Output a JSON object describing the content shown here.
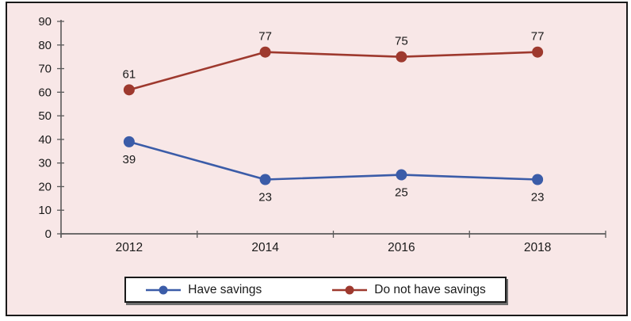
{
  "chart_data": {
    "type": "line",
    "title": "",
    "xlabel": "",
    "ylabel": "",
    "categories": [
      "2012",
      "2014",
      "2016",
      "2018"
    ],
    "series": [
      {
        "name": "Have savings",
        "values": [
          39,
          23,
          25,
          23
        ],
        "color": "#3b5ca8",
        "label_position": "below"
      },
      {
        "name": "Do not have savings",
        "values": [
          61,
          77,
          75,
          77
        ],
        "color": "#9e392e",
        "label_position": "above"
      }
    ],
    "ylim": [
      0,
      90
    ],
    "yticks": [
      0,
      10,
      20,
      30,
      40,
      50,
      60,
      70,
      80,
      90
    ],
    "grid": false,
    "data_labels": true,
    "legend_position": "bottom"
  },
  "legend": {
    "items": [
      {
        "label": "Have savings",
        "color": "#3b5ca8"
      },
      {
        "label": "Do not have savings",
        "color": "#9e392e"
      }
    ]
  },
  "colors": {
    "plot_background": "#f8e7e7",
    "frame_border": "#1a1a1a",
    "axis": "#5a5a5a",
    "text": "#1a1a1a",
    "legend_background": "#ffffff",
    "legend_border": "#1a1a1a"
  }
}
